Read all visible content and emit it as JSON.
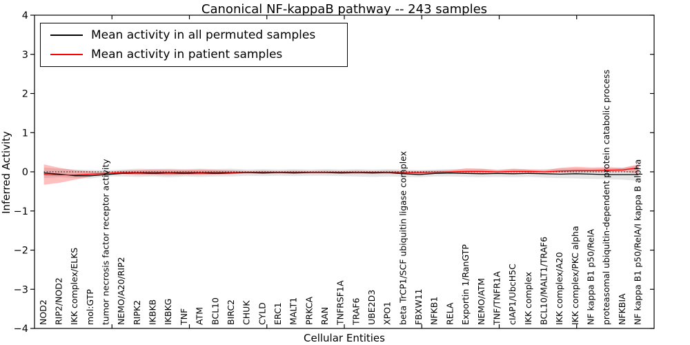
{
  "title": "Canonical NF-kappaB pathway -- 243 samples",
  "legend": {
    "items": [
      {
        "label": "Mean activity in all permuted samples",
        "color": "#000000"
      },
      {
        "label": "Mean activity in patient samples",
        "color": "#ff0000"
      }
    ],
    "position": "upper left"
  },
  "chart_data": {
    "type": "line",
    "title": "Canonical NF-kappaB pathway -- 243 samples",
    "xlabel": "Cellular Entities",
    "ylabel": "Inferred Activity",
    "ylim": [
      -4,
      4
    ],
    "yticks": [
      -4,
      -3,
      -2,
      -1,
      0,
      1,
      2,
      3,
      4
    ],
    "x_divisions": 8,
    "grid": false,
    "legend_position": "upper left",
    "categories": [
      "NOD2",
      "RIP2/NOD2",
      "IKK complex/ELKS",
      "mol:GTP",
      "tumor necrosis factor receptor activity",
      "NEMO/A20/RIP2",
      "RIPK2",
      "IKBKB",
      "IKBKG",
      "TNF",
      "ATM",
      "BCL10",
      "BIRC2",
      "CHUK",
      "CYLD",
      "ERC1",
      "MALT1",
      "PRKCA",
      "RAN",
      "TNFRSF1A",
      "TRAF6",
      "UBE2D3",
      "XPO1",
      "beta TrCP1/SCF ubiquitin ligase complex",
      "FBXW11",
      "NFKB1",
      "RELA",
      "Exportin 1/RanGTP",
      "NEMO/ATM",
      "TNF/TNFR1A",
      "cIAP1/UbcH5C",
      "IKK complex",
      "BCL10/MALT1/TRAF6",
      "IKK complex/A20",
      "IKK complex/PKC alpha",
      "NF kappa B1 p50/RelA",
      "proteasomal ubiquitin-dependent protein catabolic process",
      "NFKBIA",
      "NF kappa B1 p50/RelA/I kappa B alpha"
    ],
    "series": [
      {
        "name": "Mean activity in all permuted samples",
        "color": "#000000",
        "values": [
          -0.03,
          -0.06,
          -0.1,
          -0.1,
          -0.07,
          -0.04,
          -0.03,
          -0.04,
          -0.03,
          -0.04,
          -0.03,
          -0.04,
          -0.03,
          -0.02,
          -0.03,
          -0.02,
          -0.03,
          -0.02,
          -0.02,
          -0.03,
          -0.02,
          -0.03,
          -0.02,
          -0.05,
          -0.07,
          -0.04,
          -0.03,
          -0.04,
          -0.05,
          -0.04,
          -0.05,
          -0.04,
          -0.05,
          -0.06,
          -0.05,
          -0.06,
          -0.07,
          -0.07,
          -0.07
        ]
      },
      {
        "name": "Mean activity in patient samples",
        "color": "#ff0000",
        "values": [
          -0.07,
          -0.08,
          -0.08,
          -0.06,
          -0.04,
          -0.02,
          -0.02,
          -0.01,
          -0.02,
          -0.01,
          -0.02,
          -0.01,
          -0.02,
          -0.01,
          -0.01,
          -0.01,
          -0.01,
          -0.01,
          -0.01,
          -0.01,
          -0.01,
          -0.01,
          -0.01,
          -0.02,
          -0.02,
          -0.01,
          0.0,
          0.01,
          0.01,
          0.0,
          0.01,
          0.01,
          0.0,
          0.02,
          0.03,
          0.03,
          0.04,
          0.05,
          0.1
        ]
      }
    ],
    "bands": [
      {
        "name": "permuted samples spread",
        "color": "rgba(0,0,0,0.10)",
        "upper": [
          0.11,
          0.08,
          0.06,
          0.05,
          0.04,
          0.06,
          0.08,
          0.07,
          0.08,
          0.07,
          0.08,
          0.07,
          0.08,
          0.06,
          0.07,
          0.06,
          0.07,
          0.06,
          0.07,
          0.06,
          0.07,
          0.06,
          0.07,
          0.06,
          0.05,
          0.06,
          0.07,
          0.06,
          0.07,
          0.06,
          0.07,
          0.06,
          0.07,
          0.08,
          0.09,
          0.08,
          0.09,
          0.1,
          0.16
        ],
        "lower": [
          -0.16,
          -0.14,
          -0.16,
          -0.17,
          -0.12,
          -0.12,
          -0.13,
          -0.12,
          -0.14,
          -0.12,
          -0.13,
          -0.12,
          -0.12,
          -0.1,
          -0.11,
          -0.1,
          -0.11,
          -0.1,
          -0.1,
          -0.11,
          -0.12,
          -0.13,
          -0.12,
          -0.13,
          -0.14,
          -0.12,
          -0.12,
          -0.13,
          -0.14,
          -0.13,
          -0.14,
          -0.13,
          -0.15,
          -0.16,
          -0.17,
          -0.18,
          -0.19,
          -0.2,
          -0.23
        ]
      },
      {
        "name": "patient samples spread",
        "color": "rgba(255,0,0,0.25)",
        "upper": [
          0.19,
          0.1,
          0.04,
          0.01,
          0.0,
          0.03,
          0.05,
          0.06,
          0.06,
          0.05,
          0.06,
          0.05,
          0.04,
          0.02,
          0.03,
          0.02,
          0.03,
          0.02,
          0.03,
          0.02,
          0.03,
          0.02,
          0.03,
          0.02,
          0.02,
          0.03,
          0.04,
          0.09,
          0.08,
          0.04,
          0.08,
          0.06,
          0.04,
          0.1,
          0.13,
          0.11,
          0.12,
          0.1,
          0.19
        ],
        "lower": [
          -0.33,
          -0.28,
          -0.2,
          -0.12,
          -0.07,
          -0.06,
          -0.08,
          -0.08,
          -0.09,
          -0.08,
          -0.08,
          -0.07,
          -0.06,
          -0.04,
          -0.05,
          -0.04,
          -0.04,
          -0.04,
          -0.04,
          -0.04,
          -0.05,
          -0.04,
          -0.05,
          -0.05,
          -0.06,
          -0.05,
          -0.04,
          -0.04,
          -0.04,
          -0.03,
          -0.03,
          -0.03,
          -0.03,
          -0.02,
          -0.02,
          -0.01,
          -0.01,
          0.0,
          -0.04
        ]
      }
    ],
    "reference_line": {
      "y": 0,
      "style": "dotted",
      "color": "#000000"
    }
  }
}
